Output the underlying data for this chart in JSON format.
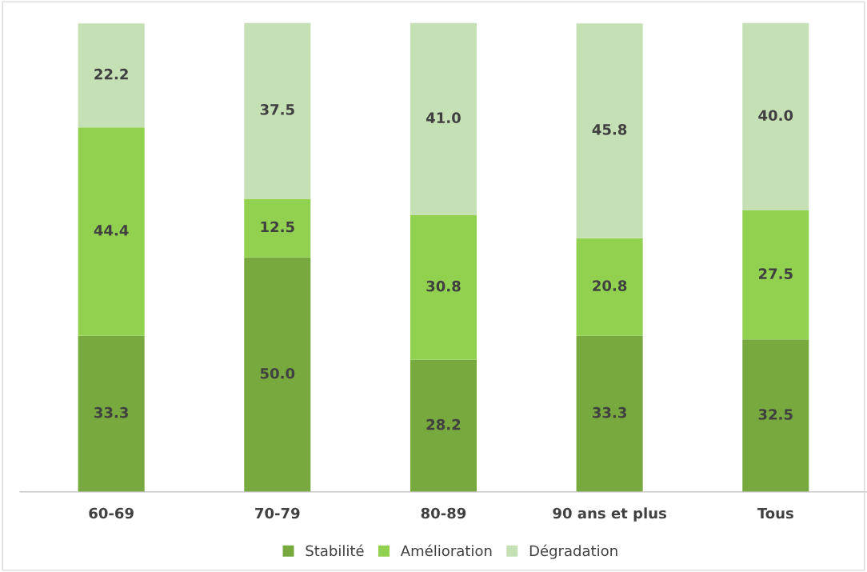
{
  "chart_data": {
    "type": "bar",
    "stacked": true,
    "categories": [
      "60-69",
      "70-79",
      "80-89",
      "90 ans et plus",
      "Tous"
    ],
    "series": [
      {
        "name": "Stabilité",
        "color": "#77a93e",
        "values": [
          33.3,
          50.0,
          28.2,
          33.3,
          32.5
        ],
        "value_labels": [
          "33.3",
          "50.0",
          "28.2",
          "33.3",
          "32.5"
        ]
      },
      {
        "name": "Amélioration",
        "color": "#92d050",
        "values": [
          44.4,
          12.5,
          30.8,
          20.8,
          27.5
        ],
        "value_labels": [
          "44.4",
          "12.5",
          "30.8",
          "20.8",
          "27.5"
        ]
      },
      {
        "name": "Dégradation",
        "color": "#c5e0b4",
        "values": [
          22.2,
          37.5,
          41.0,
          45.8,
          40.0
        ],
        "value_labels": [
          "22.2",
          "37.5",
          "41.0",
          "45.8",
          "40.0"
        ]
      }
    ],
    "legend": "bottom",
    "grid": false,
    "tick_labels": "x"
  }
}
